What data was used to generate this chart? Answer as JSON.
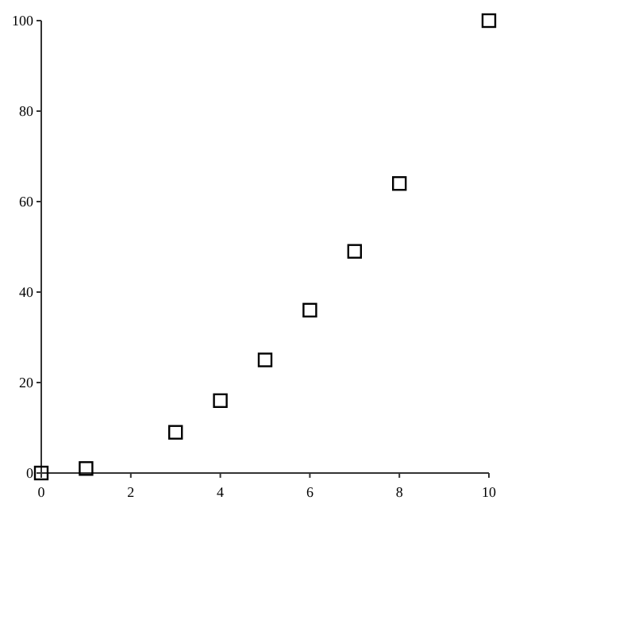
{
  "chart_data": {
    "type": "scatter",
    "marker": "square",
    "color": "#000000",
    "x": [
      0,
      1,
      3,
      4,
      5,
      6,
      7,
      8,
      10
    ],
    "values": [
      0,
      1,
      9,
      16,
      25,
      36,
      49,
      64,
      100
    ],
    "xlim": [
      0,
      10
    ],
    "ylim": [
      0,
      100
    ],
    "xticks": [
      0,
      2,
      4,
      6,
      8,
      10
    ],
    "yticks": [
      0,
      20,
      40,
      60,
      80,
      100
    ]
  }
}
